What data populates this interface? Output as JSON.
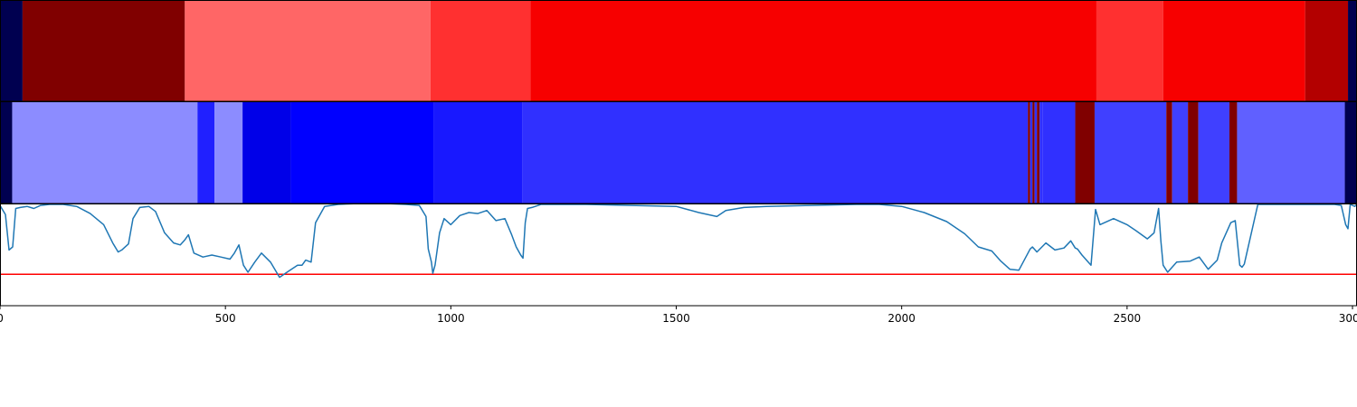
{
  "chart_data": [
    {
      "type": "heatmap",
      "xlim": [
        0,
        3010
      ],
      "segments": [
        {
          "start": 0,
          "end": 50,
          "color": "#000050"
        },
        {
          "start": 50,
          "end": 410,
          "color": "#800000"
        },
        {
          "start": 410,
          "end": 955,
          "color": "#ff6666"
        },
        {
          "start": 955,
          "end": 1177,
          "color": "#ff3030"
        },
        {
          "start": 1177,
          "end": 2432,
          "color": "#f70000"
        },
        {
          "start": 2432,
          "end": 2580,
          "color": "#ff3030"
        },
        {
          "start": 2580,
          "end": 2895,
          "color": "#f70000"
        },
        {
          "start": 2895,
          "end": 2990,
          "color": "#b30000"
        },
        {
          "start": 2990,
          "end": 3010,
          "color": "#000050"
        }
      ]
    },
    {
      "type": "heatmap",
      "xlim": [
        0,
        3010
      ],
      "segments": [
        {
          "start": 0,
          "end": 27,
          "color": "#000050"
        },
        {
          "start": 27,
          "end": 438,
          "color": "#8c8cff"
        },
        {
          "start": 438,
          "end": 476,
          "color": "#2020ff"
        },
        {
          "start": 476,
          "end": 538,
          "color": "#8c8cff"
        },
        {
          "start": 538,
          "end": 645,
          "color": "#0000e8"
        },
        {
          "start": 645,
          "end": 962,
          "color": "#0000ff"
        },
        {
          "start": 962,
          "end": 1158,
          "color": "#1818ff"
        },
        {
          "start": 1158,
          "end": 2280,
          "color": "#3030ff"
        },
        {
          "start": 2280,
          "end": 2285,
          "color": "#800000"
        },
        {
          "start": 2285,
          "end": 2290,
          "color": "#3030ff"
        },
        {
          "start": 2290,
          "end": 2295,
          "color": "#800000"
        },
        {
          "start": 2295,
          "end": 2300,
          "color": "#3030ff"
        },
        {
          "start": 2300,
          "end": 2306,
          "color": "#800000"
        },
        {
          "start": 2306,
          "end": 2312,
          "color": "#3030ff"
        },
        {
          "start": 2312,
          "end": 2385,
          "color": "#3030ff"
        },
        {
          "start": 2385,
          "end": 2428,
          "color": "#800000"
        },
        {
          "start": 2428,
          "end": 2587,
          "color": "#4040ff"
        },
        {
          "start": 2587,
          "end": 2600,
          "color": "#800000"
        },
        {
          "start": 2600,
          "end": 2635,
          "color": "#4040ff"
        },
        {
          "start": 2635,
          "end": 2658,
          "color": "#800000"
        },
        {
          "start": 2658,
          "end": 2727,
          "color": "#4040ff"
        },
        {
          "start": 2727,
          "end": 2744,
          "color": "#800000"
        },
        {
          "start": 2744,
          "end": 2983,
          "color": "#6060ff"
        },
        {
          "start": 2983,
          "end": 3010,
          "color": "#000050"
        }
      ]
    },
    {
      "type": "line",
      "xlim": [
        0,
        3010
      ],
      "ylim": [
        0.0,
        1.0
      ],
      "xticks": [
        {
          "value": 0,
          "label": "0"
        },
        {
          "value": 500,
          "label": "500"
        },
        {
          "value": 1000,
          "label": "1000"
        },
        {
          "value": 1500,
          "label": "1500"
        },
        {
          "value": 2000,
          "label": "2000"
        },
        {
          "value": 2500,
          "label": "2500"
        },
        {
          "value": 3000,
          "label": "3000"
        }
      ],
      "threshold": {
        "value": 0.31,
        "color": "#ff0000"
      },
      "series": [
        {
          "color": "#1f77b4",
          "x": [
            0,
            12,
            20,
            28,
            35,
            45,
            60,
            75,
            90,
            110,
            140,
            170,
            200,
            230,
            250,
            262,
            270,
            285,
            295,
            310,
            330,
            345,
            365,
            385,
            400,
            410,
            418,
            430,
            450,
            470,
            490,
            510,
            520,
            530,
            540,
            550,
            565,
            580,
            600,
            620,
            640,
            660,
            670,
            678,
            690,
            700,
            720,
            750,
            800,
            850,
            900,
            930,
            945,
            950,
            957,
            960,
            965,
            975,
            985,
            1000,
            1020,
            1040,
            1060,
            1080,
            1100,
            1120,
            1135,
            1145,
            1155,
            1160,
            1165,
            1170,
            1180,
            1200,
            1250,
            1300,
            1400,
            1500,
            1550,
            1590,
            1610,
            1650,
            1700,
            1800,
            1900,
            1950,
            2000,
            2050,
            2100,
            2140,
            2170,
            2200,
            2220,
            2240,
            2260,
            2285,
            2290,
            2300,
            2320,
            2340,
            2360,
            2375,
            2385,
            2390,
            2400,
            2420,
            2430,
            2440,
            2470,
            2500,
            2520,
            2545,
            2560,
            2570,
            2575,
            2580,
            2590,
            2610,
            2640,
            2660,
            2680,
            2700,
            2710,
            2730,
            2740,
            2750,
            2755,
            2760,
            2790,
            2900,
            2960,
            2975,
            2985,
            2990,
            2995,
            3005,
            3010
          ],
          "y": [
            0.99,
            0.9,
            0.55,
            0.58,
            0.96,
            0.97,
            0.98,
            0.96,
            0.99,
            1.0,
            1.0,
            0.98,
            0.91,
            0.8,
            0.62,
            0.53,
            0.55,
            0.61,
            0.86,
            0.97,
            0.98,
            0.93,
            0.72,
            0.62,
            0.6,
            0.65,
            0.7,
            0.52,
            0.48,
            0.5,
            0.48,
            0.46,
            0.52,
            0.6,
            0.4,
            0.33,
            0.43,
            0.52,
            0.43,
            0.28,
            0.34,
            0.4,
            0.4,
            0.45,
            0.43,
            0.82,
            0.98,
            1.0,
            1.01,
            1.01,
            1.0,
            0.99,
            0.88,
            0.56,
            0.43,
            0.32,
            0.4,
            0.72,
            0.86,
            0.8,
            0.89,
            0.92,
            0.91,
            0.94,
            0.84,
            0.86,
            0.7,
            0.58,
            0.5,
            0.47,
            0.82,
            0.96,
            0.97,
            1.0,
            1.0,
            1.0,
            0.99,
            0.98,
            0.92,
            0.88,
            0.94,
            0.97,
            0.98,
            0.99,
            1.0,
            1.0,
            0.98,
            0.92,
            0.83,
            0.71,
            0.58,
            0.54,
            0.44,
            0.36,
            0.35,
            0.56,
            0.58,
            0.53,
            0.62,
            0.55,
            0.57,
            0.64,
            0.57,
            0.56,
            0.5,
            0.4,
            0.95,
            0.8,
            0.86,
            0.8,
            0.74,
            0.66,
            0.72,
            0.96,
            0.64,
            0.4,
            0.33,
            0.43,
            0.44,
            0.48,
            0.36,
            0.45,
            0.62,
            0.82,
            0.84,
            0.4,
            0.38,
            0.41,
            1.0,
            1.0,
            1.0,
            0.99,
            0.8,
            0.76,
            1.0,
            0.98,
            1.0
          ]
        }
      ]
    }
  ]
}
